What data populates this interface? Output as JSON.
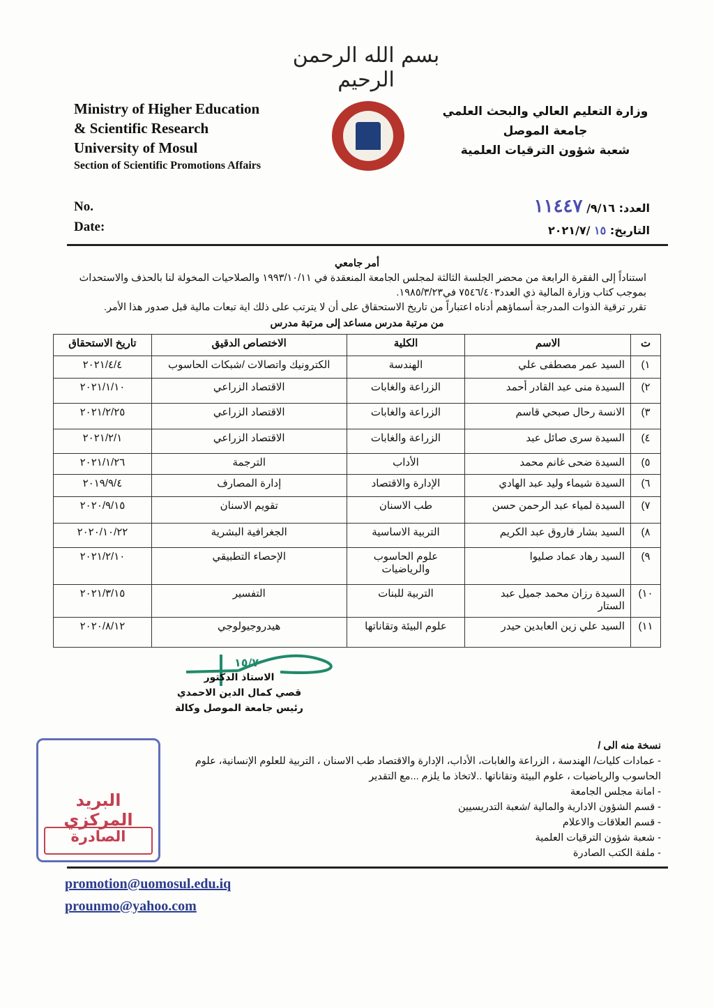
{
  "header": {
    "basmala": "بسم الله الرحمن الرحيم",
    "en_lines": [
      "Ministry of Higher Education",
      "& Scientific Research",
      "University of Mosul",
      "Section of Scientific Promotions Affairs"
    ],
    "ar_lines": [
      "وزارة التعليم العالي والبحث العلمي",
      "جامعة الموصل",
      "شعبة شؤون الترقيات العلمية"
    ],
    "no_label": "No.",
    "date_label": "Date:",
    "ar_no_label": "العدد:",
    "ar_no_value": "٩/١٦/",
    "ar_no_handwritten": "١١٤٤٧",
    "ar_date_label": "التاريخ:",
    "ar_date_handwritten": "١٥",
    "ar_date_value": "/٢٠٢١/٧"
  },
  "order": {
    "title": "أمر جامعي",
    "para1": "استناداً إلى الفقرة الرابعة من محضر الجلسة الثالثة لمجلس الجامعة المنعقدة في ١٩٩٣/١٠/١١ والصلاحيات المخولة لنا بالحذف والاستحداث بموجب كتاب وزارة المالية ذي العدد٧٥٤٦/٤٠٣ في١٩٨٥/٣/٢٣.",
    "para2": "تقرر ترقية الذوات المدرجة أسماؤهم أدناه اعتباراً من تاريخ الاستحقاق على أن لا يترتب على ذلك اية تبعات مالية قبل صدور هذا الأمر.",
    "table_caption": "من مرتبة مدرس مساعد إلى مرتبة مدرس"
  },
  "table": {
    "headers": [
      "ت",
      "الاسم",
      "الكلية",
      "الاختصاص الدقيق",
      "تاريخ الاستحقاق"
    ],
    "rows": [
      [
        "١)",
        "السيد عمر مصطفى علي",
        "الهندسة",
        "الكترونيك واتصالات /شبكات الحاسوب",
        "٢٠٢١/٤/٤"
      ],
      [
        "٢)",
        "السيدة منى عبد القادر أحمد",
        "الزراعة والغابات",
        "الاقتصاد الزراعي",
        "٢٠٢١/١/١٠"
      ],
      [
        "٣)",
        "الانسة رحال صبحي قاسم",
        "الزراعة والغابات",
        "الاقتصاد الزراعي",
        "٢٠٢١/٢/٢٥"
      ],
      [
        "٤)",
        "السيدة سرى صائل عبد",
        "الزراعة والغابات",
        "الاقتصاد الزراعي",
        "٢٠٢١/٢/١"
      ],
      [
        "٥)",
        "السيدة ضحى غانم محمد",
        "الأداب",
        "الترجمة",
        "٢٠٢١/١/٢٦"
      ],
      [
        "٦)",
        "السيدة شيماء وليد عبد الهادي",
        "الإدارة والاقتصاد",
        "إدارة المصارف",
        "٢٠١٩/٩/٤"
      ],
      [
        "٧)",
        "السيدة لمياء عبد الرحمن حسن",
        "طب الاسنان",
        "تقويم الاسنان",
        "٢٠٢٠/٩/١٥"
      ],
      [
        "٨)",
        "السيد بشار فاروق عبد الكريم",
        "التربية الاساسية",
        "الجغرافية البشرية",
        "٢٠٢٠/١٠/٢٢"
      ],
      [
        "٩)",
        "السيد رهاد عماد صليوا",
        "علوم الحاسوب والرياضيات",
        "الإحصاء التطبيقي",
        "٢٠٢١/٢/١٠"
      ],
      [
        "١٠)",
        "السيدة رزان محمد جميل عبد الستار",
        "التربية للبنات",
        "التفسير",
        "٢٠٢١/٣/١٥"
      ],
      [
        "١١)",
        "السيد علي زين العابدين حيدر",
        "علوم البيئة وتقاناتها",
        "هيدروجيولوجي",
        "٢٠٢٠/٨/١٢"
      ]
    ]
  },
  "signature": {
    "handwritten": "١٥/٧",
    "lines": [
      "الاستاذ الدكتور",
      "قصي كمال الدين الاحمدي",
      "رئيس جامعة الموصل وكالة"
    ]
  },
  "copies": {
    "title": "نسخة منه الى /",
    "items": [
      "- عمادات كليات/ الهندسة ، الزراعة والغابات، الأداب، الإدارة والاقتصاد طب الاسنان ، التربية للعلوم الإنسانية، علوم الحاسوب والرياضيات ، علوم البيئة وتقاناتها ..لاتخاذ ما يلزم ...مع التقدير",
      "- امانة مجلس الجامعة",
      "- قسم الشؤون الادارية والمالية /شعبة التدريسيين",
      "- قسم العلاقات والاعلام",
      "- شعبة شؤون الترقيات العلمية",
      "- ملفة الكتب الصادرة"
    ]
  },
  "stamp": {
    "line1": "البريد المركزي",
    "line2": "الصادرة"
  },
  "emails": [
    "promotion@uomosul.edu.iq",
    "prounmo@yahoo.com"
  ],
  "colors": {
    "ink_blue": "#4a4db3",
    "stamp_red": "#c24050",
    "stamp_blue": "#5f6fb8",
    "email": "#2a3c8c",
    "signature_green": "#1f8a6a"
  }
}
